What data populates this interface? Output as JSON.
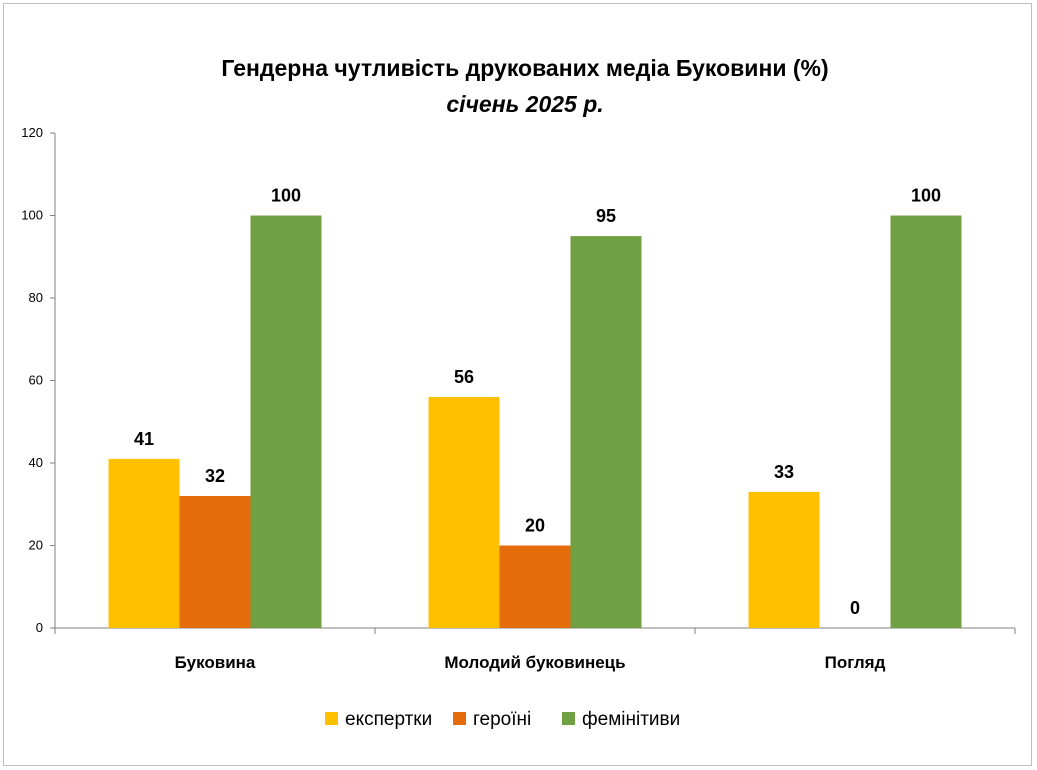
{
  "chart_data": {
    "type": "bar",
    "title": "Гендерна чутливість друкованих медіа Буковини (%)",
    "subtitle": "січень 2025 р.",
    "categories": [
      "Буковина",
      "Молодий буковинець",
      "Погляд"
    ],
    "series": [
      {
        "name": "експертки",
        "values": [
          41,
          56,
          33
        ],
        "color": "#FFC000"
      },
      {
        "name": "героїні",
        "values": [
          32,
          20,
          0
        ],
        "color": "#E46C0A"
      },
      {
        "name": "фемінітиви",
        "values": [
          100,
          95,
          100
        ],
        "color": "#70A044"
      }
    ],
    "ylim": [
      0,
      120
    ],
    "yticks": [
      0,
      20,
      40,
      60,
      80,
      100,
      120
    ],
    "xlabel": "",
    "ylabel": "",
    "grid": false,
    "legend": "bottom"
  }
}
